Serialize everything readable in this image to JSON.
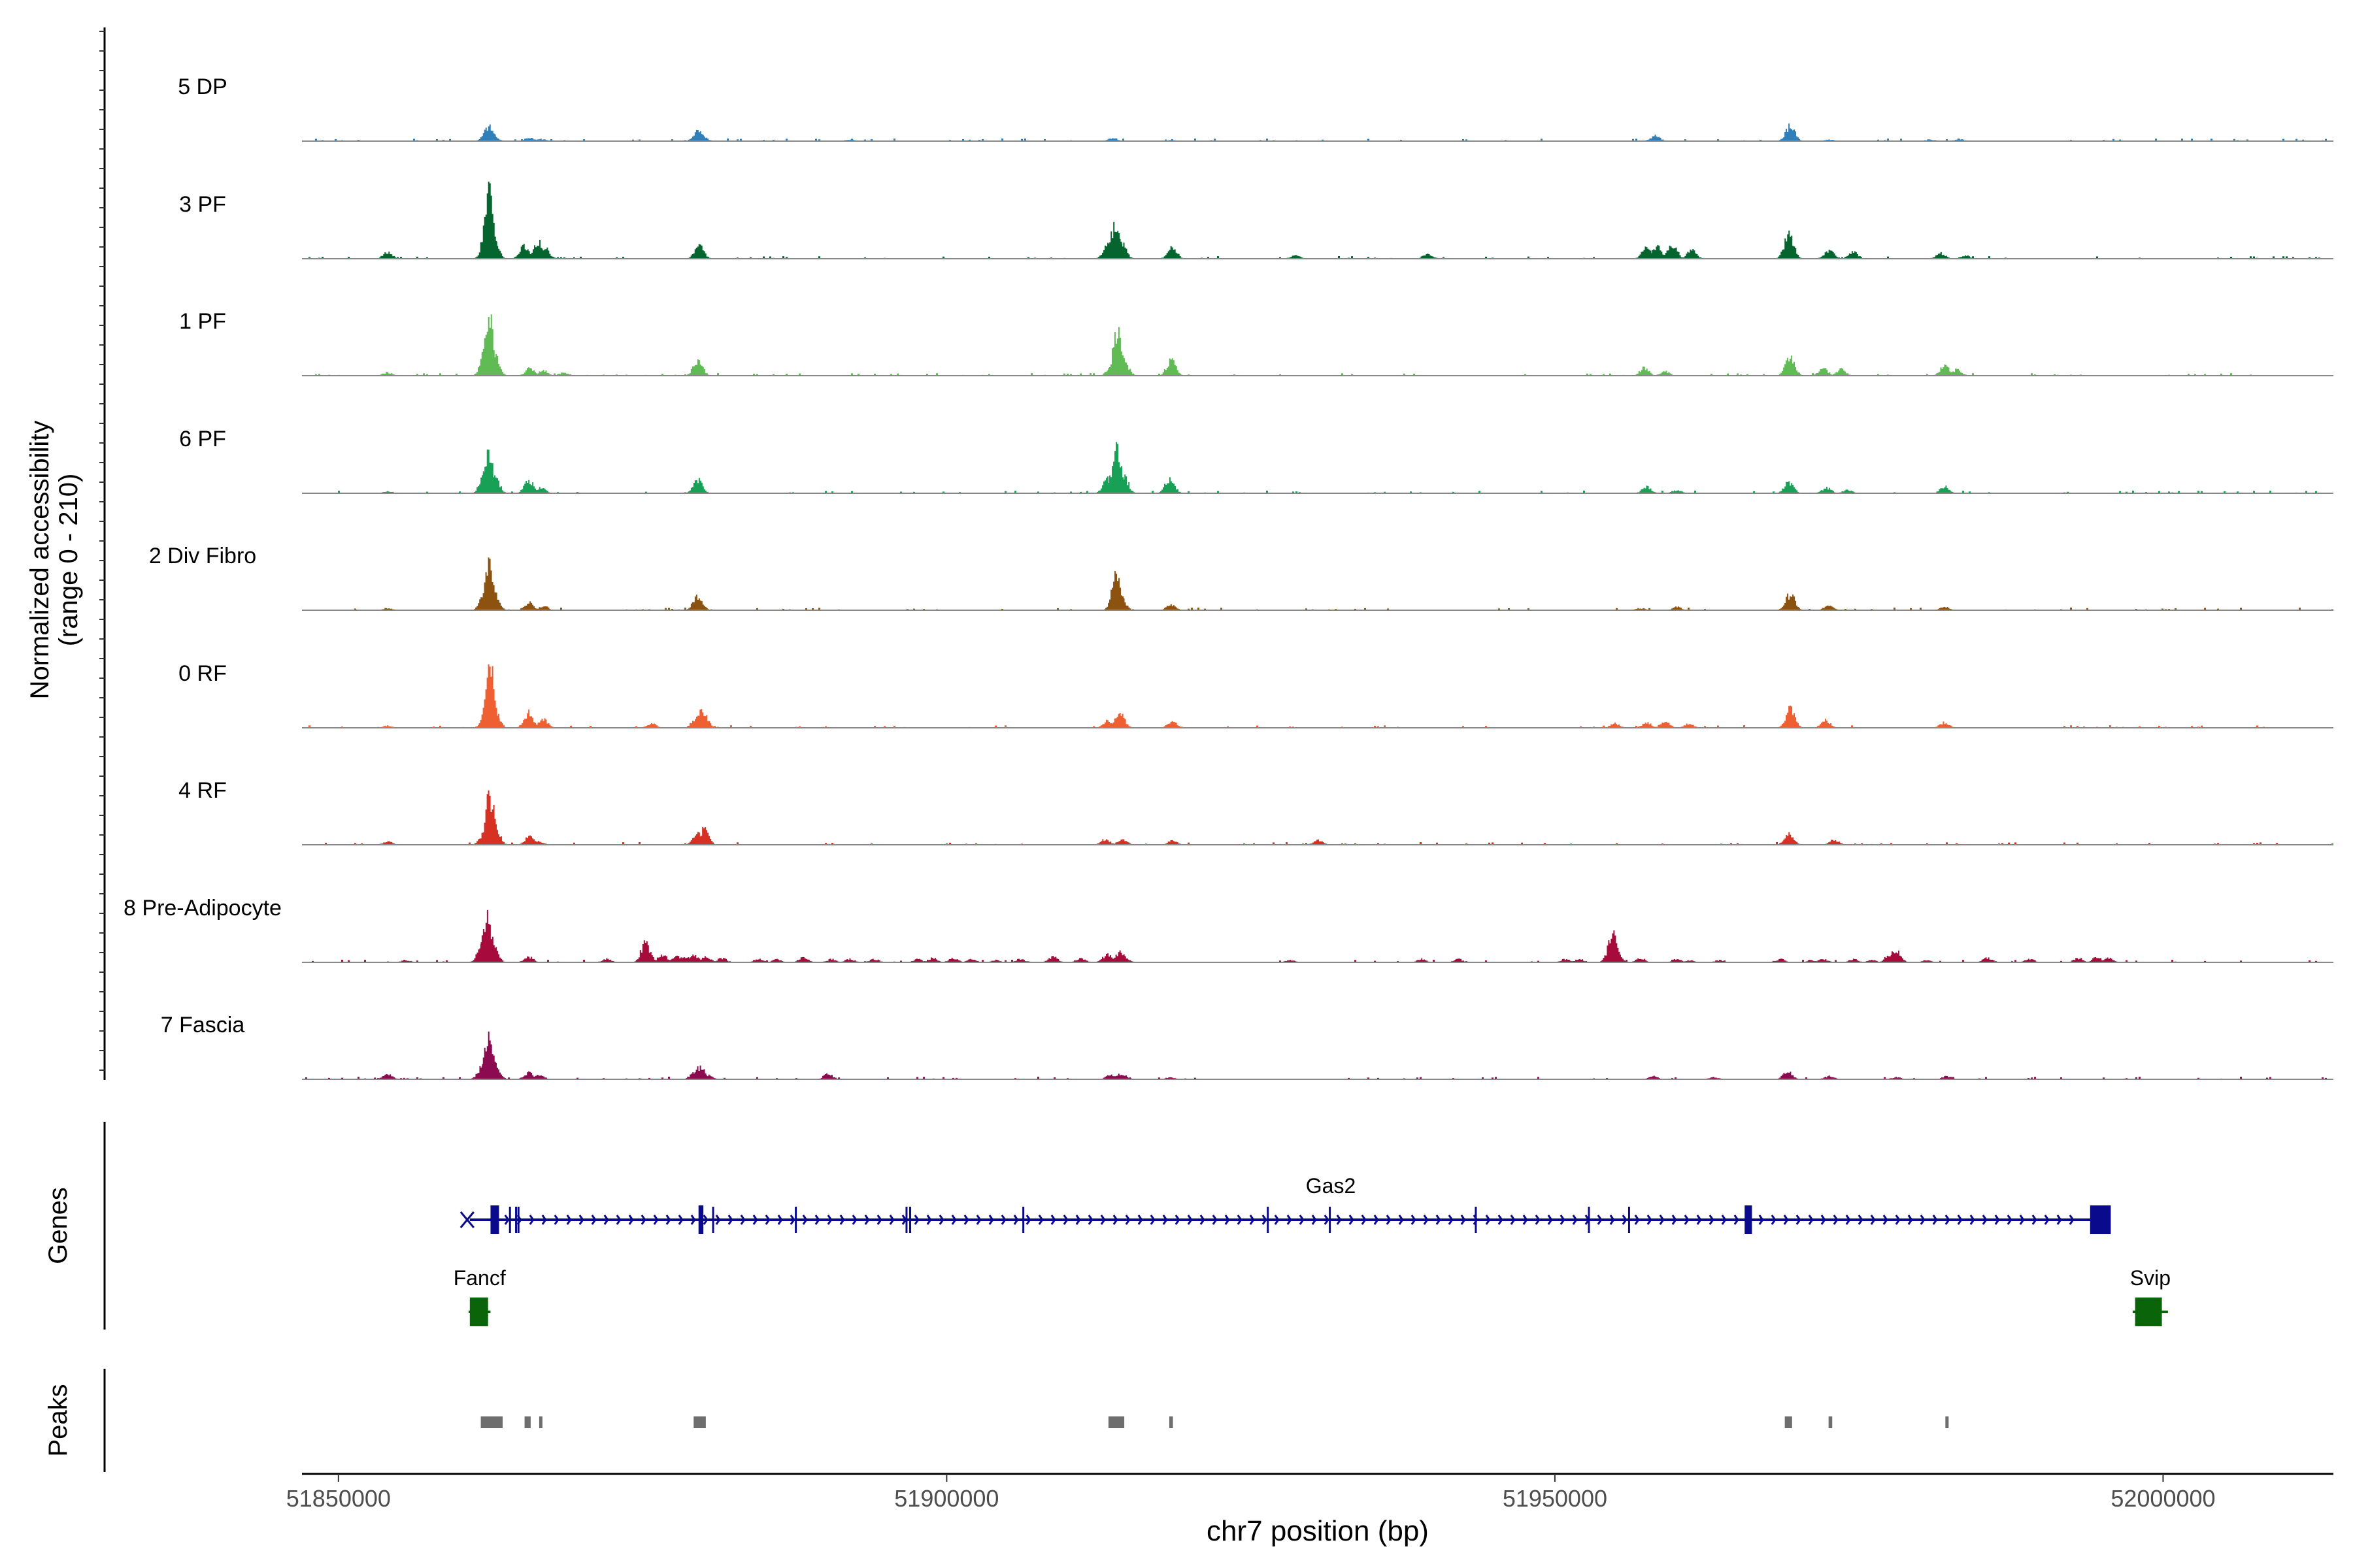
{
  "chart_data": {
    "type": "area",
    "title": "",
    "ylabel_line1": "Normalized accessibility",
    "ylabel_line2": "(range 0 - 210)",
    "xlabel": "chr7 position (bp)",
    "xlim": [
      51847000,
      52014000
    ],
    "ylim": [
      0,
      210
    ],
    "x_ticks": [
      51850000,
      51900000,
      51950000,
      52000000
    ],
    "x_tick_labels": [
      "51850000",
      "51900000",
      "51950000",
      "52000000"
    ],
    "genes_label": "Genes",
    "peaks_label": "Peaks",
    "tracks": [
      {
        "name": "5 DP",
        "color": "#2f7fba",
        "peaks": [
          [
            51858000,
            0.5
          ],
          [
            51862000,
            3
          ],
          [
            51862300,
            13
          ],
          [
            51862500,
            8
          ],
          [
            51862800,
            3
          ],
          [
            51865700,
            3
          ],
          [
            51866600,
            2
          ],
          [
            51879500,
            9
          ],
          [
            51879900,
            4
          ],
          [
            51892000,
            1.5
          ],
          [
            51913600,
            3
          ],
          [
            51918500,
            1
          ],
          [
            51958200,
            5
          ],
          [
            51969300,
            14
          ],
          [
            51972500,
            1.5
          ],
          [
            51980800,
            1.5
          ],
          [
            51983200,
            2
          ]
        ]
      },
      {
        "name": "3 PF",
        "color": "#06642e",
        "peaks": [
          [
            51854000,
            6
          ],
          [
            51862000,
            6
          ],
          [
            51862300,
            60
          ],
          [
            51862700,
            18
          ],
          [
            51865200,
            12
          ],
          [
            51866400,
            15
          ],
          [
            51866900,
            10
          ],
          [
            51879600,
            12
          ],
          [
            51913200,
            12
          ],
          [
            51913800,
            32
          ],
          [
            51914300,
            16
          ],
          [
            51918500,
            10
          ],
          [
            51928600,
            3
          ],
          [
            51939500,
            5
          ],
          [
            51957500,
            10
          ],
          [
            51958300,
            12
          ],
          [
            51959600,
            14
          ],
          [
            51961200,
            8
          ],
          [
            51969200,
            24
          ],
          [
            51972500,
            8
          ],
          [
            51974500,
            6
          ],
          [
            51981700,
            5
          ],
          [
            51983700,
            3
          ]
        ]
      },
      {
        "name": "1 PF",
        "color": "#61bb54",
        "peaks": [
          [
            51854000,
            3
          ],
          [
            51862100,
            30
          ],
          [
            51862300,
            55
          ],
          [
            51862700,
            22
          ],
          [
            51865700,
            7
          ],
          [
            51866800,
            5
          ],
          [
            51868500,
            3
          ],
          [
            51879500,
            14
          ],
          [
            51913500,
            8
          ],
          [
            51914000,
            40
          ],
          [
            51914500,
            15
          ],
          [
            51918400,
            14
          ],
          [
            51957300,
            7
          ],
          [
            51959000,
            4
          ],
          [
            51969300,
            18
          ],
          [
            51972000,
            7
          ],
          [
            51973500,
            6
          ],
          [
            51982000,
            10
          ],
          [
            51983000,
            6
          ]
        ]
      },
      {
        "name": "6 PF",
        "color": "#17a056",
        "peaks": [
          [
            51854000,
            2
          ],
          [
            51862000,
            22
          ],
          [
            51862300,
            34
          ],
          [
            51862800,
            15
          ],
          [
            51865600,
            12
          ],
          [
            51866600,
            5
          ],
          [
            51879500,
            12
          ],
          [
            51913200,
            14
          ],
          [
            51913900,
            42
          ],
          [
            51914500,
            16
          ],
          [
            51918300,
            14
          ],
          [
            51957500,
            6
          ],
          [
            51960000,
            3
          ],
          [
            51969200,
            10
          ],
          [
            51972300,
            5
          ],
          [
            51974000,
            3
          ],
          [
            51982000,
            6
          ]
        ]
      },
      {
        "name": "2 Div Fibro",
        "color": "#8c520f",
        "peaks": [
          [
            51854000,
            2
          ],
          [
            51862000,
            20
          ],
          [
            51862400,
            42
          ],
          [
            51862800,
            12
          ],
          [
            51865600,
            7
          ],
          [
            51866800,
            4
          ],
          [
            51879500,
            14
          ],
          [
            51913900,
            32
          ],
          [
            51914300,
            12
          ],
          [
            51918400,
            5
          ],
          [
            51957000,
            2
          ],
          [
            51960000,
            3
          ],
          [
            51969300,
            15
          ],
          [
            51972500,
            5
          ],
          [
            51982000,
            3
          ]
        ]
      },
      {
        "name": "0 RF",
        "color": "#ee6032",
        "peaks": [
          [
            51854000,
            2
          ],
          [
            51862100,
            14
          ],
          [
            51862400,
            55
          ],
          [
            51862800,
            15
          ],
          [
            51865600,
            14
          ],
          [
            51866800,
            8
          ],
          [
            51875700,
            4
          ],
          [
            51879400,
            10
          ],
          [
            51879900,
            16
          ],
          [
            51913200,
            7
          ],
          [
            51914200,
            14
          ],
          [
            51918500,
            6
          ],
          [
            51954900,
            4
          ],
          [
            51957500,
            5
          ],
          [
            51959000,
            6
          ],
          [
            51961000,
            4
          ],
          [
            51969300,
            18
          ],
          [
            51972200,
            7
          ],
          [
            51982000,
            5
          ]
        ]
      },
      {
        "name": "4 RF",
        "color": "#d63123",
        "peaks": [
          [
            51854000,
            3
          ],
          [
            51862000,
            12
          ],
          [
            51862400,
            45
          ],
          [
            51862800,
            18
          ],
          [
            51865700,
            8
          ],
          [
            51866400,
            3
          ],
          [
            51879500,
            10
          ],
          [
            51880000,
            14
          ],
          [
            51913000,
            5
          ],
          [
            51914400,
            5
          ],
          [
            51918500,
            4
          ],
          [
            51930500,
            4
          ],
          [
            51969200,
            10
          ],
          [
            51972900,
            5
          ]
        ]
      },
      {
        "name": "8 Pre-Adipocyte",
        "color": "#a60b3c",
        "peaks": [
          [
            51855500,
            2
          ],
          [
            51861800,
            18
          ],
          [
            51862200,
            40
          ],
          [
            51862700,
            14
          ],
          [
            51865600,
            5
          ],
          [
            51872000,
            3
          ],
          [
            51875200,
            18
          ],
          [
            51876600,
            7
          ],
          [
            51877800,
            6
          ],
          [
            51878500,
            5
          ],
          [
            51879200,
            7
          ],
          [
            51880200,
            5
          ],
          [
            51881500,
            4
          ],
          [
            51884500,
            3
          ],
          [
            51886000,
            3
          ],
          [
            51888200,
            5
          ],
          [
            51890500,
            3
          ],
          [
            51892000,
            3
          ],
          [
            51894000,
            3
          ],
          [
            51897600,
            3
          ],
          [
            51898800,
            4
          ],
          [
            51900500,
            4
          ],
          [
            51902000,
            3
          ],
          [
            51904000,
            2
          ],
          [
            51906000,
            3
          ],
          [
            51908700,
            5
          ],
          [
            51911000,
            4
          ],
          [
            51913000,
            4
          ],
          [
            51913200,
            8
          ],
          [
            51914200,
            10
          ],
          [
            51914700,
            3
          ],
          [
            51928200,
            2
          ],
          [
            51939000,
            3
          ],
          [
            51942000,
            3
          ],
          [
            51950800,
            3
          ],
          [
            51952000,
            3
          ],
          [
            51954700,
            25
          ],
          [
            51955000,
            10
          ],
          [
            51957000,
            4
          ],
          [
            51960000,
            3
          ],
          [
            51961000,
            2
          ],
          [
            51963500,
            2
          ],
          [
            51968500,
            3
          ],
          [
            51971000,
            2
          ],
          [
            51972000,
            3
          ],
          [
            51974500,
            3
          ],
          [
            51976000,
            2
          ],
          [
            51977500,
            8
          ],
          [
            51978000,
            12
          ],
          [
            51980500,
            2
          ],
          [
            51985500,
            4
          ],
          [
            51989000,
            3
          ],
          [
            51993000,
            4
          ],
          [
            51994500,
            5
          ],
          [
            51995500,
            4
          ]
        ]
      },
      {
        "name": "7 Fascia",
        "color": "#8c0a4f",
        "peaks": [
          [
            51854000,
            5
          ],
          [
            51861800,
            12
          ],
          [
            51862300,
            38
          ],
          [
            51862800,
            14
          ],
          [
            51865600,
            6
          ],
          [
            51866500,
            4
          ],
          [
            51879200,
            6
          ],
          [
            51879700,
            12
          ],
          [
            51880300,
            4
          ],
          [
            51890200,
            5
          ],
          [
            51913400,
            4
          ],
          [
            51914100,
            5
          ],
          [
            51914600,
            3
          ],
          [
            51918300,
            2
          ],
          [
            51958000,
            3
          ],
          [
            51963000,
            2
          ],
          [
            51969100,
            7
          ],
          [
            51972500,
            3
          ],
          [
            51978000,
            2
          ],
          [
            51982200,
            3
          ]
        ]
      }
    ],
    "genes": [
      {
        "name": "Gas2",
        "strand": "+",
        "color": "#0a0a8c",
        "start": 51860800,
        "end": 51994700,
        "exons": [
          [
            51862500,
            51863200
          ],
          [
            51879600,
            51880000
          ],
          [
            51965600,
            51966200
          ],
          [
            51994000,
            51995700
          ]
        ],
        "introns_marks": [
          51864100,
          51864600,
          51864800,
          51880800,
          51887600,
          51896700,
          51897000,
          51906300,
          51926400,
          51931500,
          51943500,
          51952800,
          51956100
        ]
      },
      {
        "name": "Fancf",
        "strand": "-",
        "color": "#0a640a",
        "start": 51860700,
        "end": 51862500,
        "exons": [
          [
            51860800,
            51862300
          ]
        ]
      },
      {
        "name": "Svip",
        "strand": "+",
        "color": "#0a640a",
        "start": 51997500,
        "end": 52000400,
        "exons": [
          [
            51997700,
            51999900
          ]
        ]
      }
    ],
    "peak_regions": [
      [
        51861700,
        51863500
      ],
      [
        51865300,
        51865800
      ],
      [
        51866500,
        51866700
      ],
      [
        51879200,
        51880200
      ],
      [
        51913300,
        51914600
      ],
      [
        51918300,
        51918600
      ],
      [
        51968900,
        51969500
      ],
      [
        51972500,
        51972800
      ],
      [
        51982100,
        51982200
      ]
    ]
  }
}
